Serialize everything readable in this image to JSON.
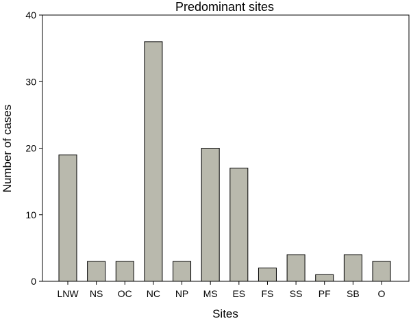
{
  "chart_data": {
    "type": "bar",
    "title": "Predominant sites",
    "xlabel": "Sites",
    "ylabel": "Number of cases",
    "categories": [
      "LNW",
      "NS",
      "OC",
      "NC",
      "NP",
      "MS",
      "ES",
      "FS",
      "SS",
      "PF",
      "SB",
      "O"
    ],
    "values": [
      19,
      3,
      3,
      36,
      3,
      20,
      17,
      2,
      4,
      1,
      4,
      3
    ],
    "ylim": [
      0,
      40
    ],
    "yticks": [
      "0",
      "10",
      "20",
      "30",
      "40"
    ],
    "grid": false,
    "bar_color": "#b9b9ad"
  }
}
